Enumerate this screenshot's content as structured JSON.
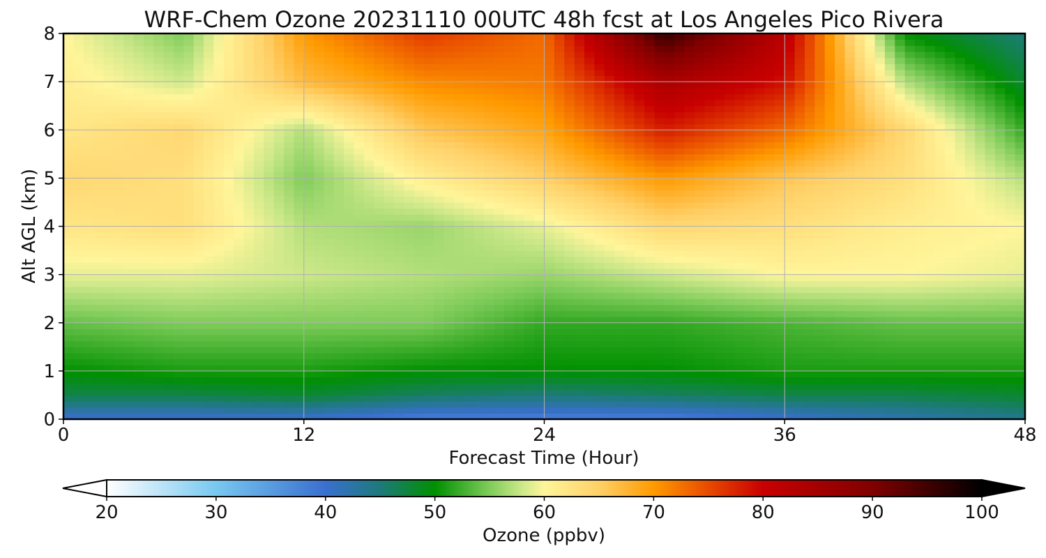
{
  "chart_data": {
    "type": "heatmap",
    "title": "WRF-Chem Ozone  20231110 00UTC 48h fcst at Los Angeles Pico Rivera",
    "xlabel": "Forecast Time (Hour)",
    "ylabel": "Alt AGL (km)",
    "xlim": [
      0,
      48
    ],
    "ylim": [
      0,
      8
    ],
    "xticks": [
      0,
      12,
      24,
      36,
      48
    ],
    "yticks": [
      0,
      1,
      2,
      3,
      4,
      5,
      6,
      7,
      8
    ],
    "grid": true,
    "colorbar": {
      "label": "Ozone  (ppbv)",
      "min": 20,
      "max": 100,
      "ticks": [
        20,
        30,
        40,
        50,
        60,
        70,
        80,
        90,
        100
      ],
      "extend": "both",
      "stops": [
        {
          "v": 20,
          "c": "#ffffff"
        },
        {
          "v": 30,
          "c": "#78c8f0"
        },
        {
          "v": 40,
          "c": "#3a6fcf"
        },
        {
          "v": 45,
          "c": "#1d7a7a"
        },
        {
          "v": 50,
          "c": "#009000"
        },
        {
          "v": 55,
          "c": "#7fcc5a"
        },
        {
          "v": 58,
          "c": "#cde88a"
        },
        {
          "v": 60,
          "c": "#fff59a"
        },
        {
          "v": 65,
          "c": "#ffd068"
        },
        {
          "v": 70,
          "c": "#ff9a00"
        },
        {
          "v": 75,
          "c": "#e84a00"
        },
        {
          "v": 80,
          "c": "#c80000"
        },
        {
          "v": 90,
          "c": "#800000"
        },
        {
          "v": 100,
          "c": "#000000"
        }
      ]
    },
    "x_hours": [
      0,
      6,
      12,
      18,
      24,
      30,
      36,
      42,
      48
    ],
    "y_km": [
      0,
      0.5,
      1,
      2,
      3,
      4,
      5,
      6,
      7,
      8
    ],
    "ozone_ppbv": [
      [
        40,
        40,
        40,
        38,
        38,
        38,
        40,
        42,
        44
      ],
      [
        47,
        47,
        48,
        46,
        45,
        46,
        47,
        47,
        48
      ],
      [
        50,
        51,
        51,
        50,
        50,
        50,
        51,
        51,
        51
      ],
      [
        54,
        55,
        55,
        55,
        52,
        52,
        53,
        54,
        54
      ],
      [
        59,
        59,
        58,
        57,
        56,
        58,
        60,
        60,
        59
      ],
      [
        62,
        63,
        57,
        56,
        59,
        64,
        63,
        61,
        60
      ],
      [
        64,
        63,
        55,
        61,
        65,
        70,
        66,
        63,
        57
      ],
      [
        62,
        64,
        57,
        66,
        69,
        78,
        73,
        64,
        52
      ],
      [
        61,
        58,
        67,
        71,
        72,
        84,
        79,
        57,
        48
      ],
      [
        60,
        55,
        70,
        76,
        73,
        96,
        82,
        50,
        45
      ]
    ]
  }
}
